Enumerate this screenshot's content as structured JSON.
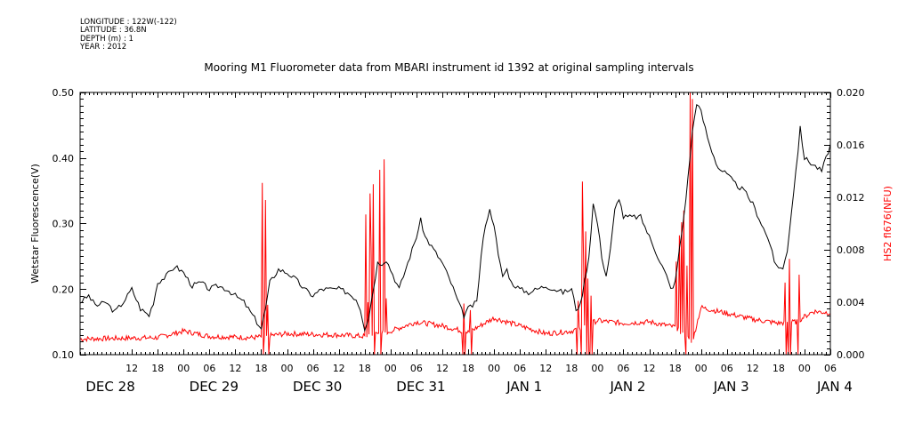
{
  "header": {
    "longitude": "LONGITUDE : 122W(-122)",
    "latitude": "LATITUDE : 36.8N",
    "depth": "DEPTH (m) : 1",
    "year": "YEAR : 2012"
  },
  "chart_data": {
    "type": "line",
    "title": "Mooring M1 Fluorometer data from MBARI instrument id 1392 at original sampling intervals",
    "ylabel_left": "Wetstar Fluorescence(V)",
    "ylabel_right": "HS2 fl676(NFU)",
    "ylim_left": [
      0.1,
      0.5
    ],
    "ylim_right": [
      0.0,
      0.02
    ],
    "yticks_left": [
      "0.10",
      "0.20",
      "0.30",
      "0.40",
      "0.50"
    ],
    "yticks_right": [
      "0.000",
      "0.004",
      "0.008",
      "0.012",
      "0.016",
      "0.020"
    ],
    "x_range_hours": [
      0,
      174
    ],
    "hour_ticks": [
      "12",
      "18",
      "00",
      "06",
      "12",
      "18",
      "00",
      "06",
      "12",
      "18",
      "00",
      "06",
      "12",
      "18",
      "00",
      "06",
      "12",
      "18",
      "00",
      "06",
      "12",
      "18",
      "00",
      "06",
      "12",
      "18",
      "00",
      "06"
    ],
    "day_labels": [
      "DEC 28",
      "DEC 29",
      "DEC 30",
      "DEC 31",
      "JAN 1",
      "JAN 2",
      "JAN 3",
      "JAN 4"
    ],
    "colors": {
      "wetstar": "#000000",
      "hs2": "#ff0000"
    },
    "series": [
      {
        "key": "wetstar",
        "values": [
          [
            0,
            0.18
          ],
          [
            2,
            0.19
          ],
          [
            3,
            0.18
          ],
          [
            4,
            0.175
          ],
          [
            6,
            0.18
          ],
          [
            8,
            0.165
          ],
          [
            10,
            0.18
          ],
          [
            12,
            0.2
          ],
          [
            13,
            0.185
          ],
          [
            14,
            0.17
          ],
          [
            16,
            0.16
          ],
          [
            17,
            0.18
          ],
          [
            18,
            0.21
          ],
          [
            20,
            0.22
          ],
          [
            22,
            0.235
          ],
          [
            24,
            0.225
          ],
          [
            26,
            0.205
          ],
          [
            28,
            0.21
          ],
          [
            30,
            0.2
          ],
          [
            32,
            0.205
          ],
          [
            34,
            0.2
          ],
          [
            36,
            0.19
          ],
          [
            38,
            0.18
          ],
          [
            40,
            0.16
          ],
          [
            41,
            0.15
          ],
          [
            42,
            0.14
          ],
          [
            43,
            0.17
          ],
          [
            44,
            0.21
          ],
          [
            46,
            0.23
          ],
          [
            48,
            0.225
          ],
          [
            50,
            0.215
          ],
          [
            52,
            0.2
          ],
          [
            54,
            0.19
          ],
          [
            56,
            0.2
          ],
          [
            58,
            0.2
          ],
          [
            60,
            0.2
          ],
          [
            62,
            0.195
          ],
          [
            64,
            0.185
          ],
          [
            65,
            0.17
          ],
          [
            66,
            0.14
          ],
          [
            67,
            0.16
          ],
          [
            68,
            0.2
          ],
          [
            69,
            0.24
          ],
          [
            70,
            0.24
          ],
          [
            71,
            0.245
          ],
          [
            72,
            0.23
          ],
          [
            74,
            0.2
          ],
          [
            76,
            0.24
          ],
          [
            78,
            0.28
          ],
          [
            79,
            0.305
          ],
          [
            80,
            0.28
          ],
          [
            82,
            0.26
          ],
          [
            84,
            0.24
          ],
          [
            86,
            0.21
          ],
          [
            88,
            0.175
          ],
          [
            89,
            0.16
          ],
          [
            90,
            0.17
          ],
          [
            92,
            0.18
          ],
          [
            93,
            0.25
          ],
          [
            94,
            0.3
          ],
          [
            95,
            0.32
          ],
          [
            96,
            0.3
          ],
          [
            97,
            0.25
          ],
          [
            98,
            0.22
          ],
          [
            99,
            0.23
          ],
          [
            100,
            0.21
          ],
          [
            102,
            0.2
          ],
          [
            104,
            0.195
          ],
          [
            106,
            0.2
          ],
          [
            108,
            0.205
          ],
          [
            110,
            0.2
          ],
          [
            112,
            0.195
          ],
          [
            114,
            0.2
          ],
          [
            115,
            0.17
          ],
          [
            116,
            0.175
          ],
          [
            118,
            0.25
          ],
          [
            119,
            0.33
          ],
          [
            120,
            0.3
          ],
          [
            121,
            0.25
          ],
          [
            122,
            0.22
          ],
          [
            123,
            0.26
          ],
          [
            124,
            0.32
          ],
          [
            125,
            0.34
          ],
          [
            126,
            0.31
          ],
          [
            128,
            0.31
          ],
          [
            130,
            0.31
          ],
          [
            132,
            0.28
          ],
          [
            134,
            0.25
          ],
          [
            136,
            0.22
          ],
          [
            137,
            0.2
          ],
          [
            138,
            0.21
          ],
          [
            139,
            0.26
          ],
          [
            140,
            0.31
          ],
          [
            141,
            0.37
          ],
          [
            142,
            0.44
          ],
          [
            143,
            0.485
          ],
          [
            144,
            0.47
          ],
          [
            146,
            0.42
          ],
          [
            148,
            0.385
          ],
          [
            150,
            0.375
          ],
          [
            152,
            0.36
          ],
          [
            154,
            0.35
          ],
          [
            156,
            0.33
          ],
          [
            158,
            0.3
          ],
          [
            160,
            0.27
          ],
          [
            161,
            0.24
          ],
          [
            162,
            0.235
          ],
          [
            163,
            0.23
          ],
          [
            164,
            0.26
          ],
          [
            165,
            0.32
          ],
          [
            166,
            0.38
          ],
          [
            167,
            0.445
          ],
          [
            168,
            0.4
          ],
          [
            170,
            0.39
          ],
          [
            172,
            0.38
          ],
          [
            173,
            0.4
          ],
          [
            174,
            0.42
          ]
        ]
      },
      {
        "key": "hs2",
        "baseline": [
          [
            0,
            0.0012
          ],
          [
            18,
            0.0013
          ],
          [
            24,
            0.0018
          ],
          [
            30,
            0.0014
          ],
          [
            40,
            0.0013
          ],
          [
            48,
            0.0016
          ],
          [
            60,
            0.0015
          ],
          [
            66,
            0.0014
          ],
          [
            72,
            0.0018
          ],
          [
            78,
            0.0025
          ],
          [
            84,
            0.0022
          ],
          [
            90,
            0.0017
          ],
          [
            96,
            0.0028
          ],
          [
            102,
            0.0022
          ],
          [
            108,
            0.0016
          ],
          [
            114,
            0.0018
          ],
          [
            120,
            0.0026
          ],
          [
            126,
            0.0024
          ],
          [
            132,
            0.0025
          ],
          [
            138,
            0.0021
          ],
          [
            142,
            0.001
          ],
          [
            144,
            0.0036
          ],
          [
            148,
            0.0033
          ],
          [
            156,
            0.0027
          ],
          [
            162,
            0.0024
          ],
          [
            166,
            0.0025
          ],
          [
            170,
            0.0033
          ],
          [
            174,
            0.0032
          ]
        ],
        "spikes": [
          [
            42.3,
            0.0131
          ],
          [
            42.9,
            0.0118
          ],
          [
            43.4,
            0.0038
          ],
          [
            66.3,
            0.0107
          ],
          [
            66.8,
            0.004
          ],
          [
            67.2,
            0.0123
          ],
          [
            67.6,
            0.0081
          ],
          [
            68.1,
            0.013
          ],
          [
            69.5,
            0.0141
          ],
          [
            70.5,
            0.0149
          ],
          [
            70.9,
            0.0043
          ],
          [
            89.1,
            0.0039
          ],
          [
            90.5,
            0.0034
          ],
          [
            115.5,
            0.0041
          ],
          [
            116.4,
            0.0132
          ],
          [
            116.8,
            0.0076
          ],
          [
            117.3,
            0.0094
          ],
          [
            117.8,
            0.0058
          ],
          [
            118.6,
            0.0045
          ],
          [
            138.3,
            0.0071
          ],
          [
            138.9,
            0.0091
          ],
          [
            139.5,
            0.0101
          ],
          [
            140.1,
            0.011
          ],
          [
            140.8,
            0.0068
          ],
          [
            141.6,
            0.02
          ],
          [
            142.0,
            0.0195
          ],
          [
            163.5,
            0.0055
          ],
          [
            164.4,
            0.0073
          ],
          [
            166.8,
            0.0061
          ]
        ]
      }
    ]
  }
}
